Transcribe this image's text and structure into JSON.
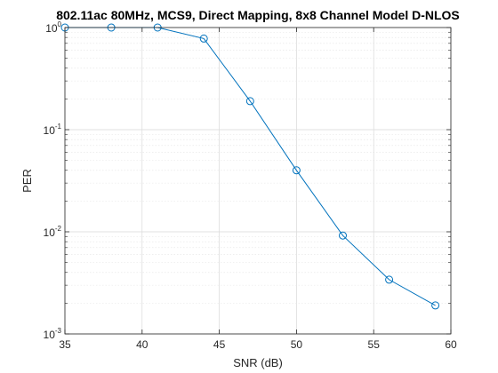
{
  "chart_data": {
    "type": "line",
    "title": "802.11ac 80MHz, MCS9, Direct Mapping, 8x8 Channel Model D-NLOS",
    "xlabel": "SNR (dB)",
    "ylabel": "PER",
    "xlim": [
      35,
      60
    ],
    "ylim": [
      0.001,
      1
    ],
    "yscale": "log",
    "grid": true,
    "minor_grid": true,
    "x_ticks": [
      35,
      40,
      45,
      50,
      55,
      60
    ],
    "y_ticks": [
      {
        "base": "10",
        "exp": "-3",
        "value": 0.001
      },
      {
        "base": "10",
        "exp": "-2",
        "value": 0.01
      },
      {
        "base": "10",
        "exp": "-1",
        "value": 0.1
      },
      {
        "base": "10",
        "exp": "0",
        "value": 1
      }
    ],
    "series": [
      {
        "color": "#0072BD",
        "marker": "circle",
        "x": [
          35,
          38,
          41,
          44,
          47,
          50,
          53,
          56,
          59
        ],
        "y": [
          1.0,
          1.0,
          1.0,
          0.78,
          0.19,
          0.04,
          0.0092,
          0.0034,
          0.0019
        ]
      }
    ]
  }
}
